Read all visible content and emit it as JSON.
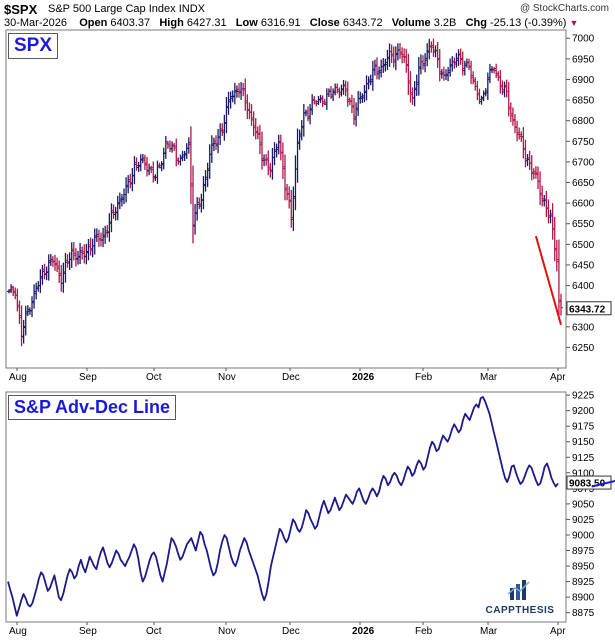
{
  "header": {
    "symbol": "$SPX",
    "name": "S&P 500 Large Cap Index",
    "exchange": "INDX",
    "copyright": "@ StockCharts.com",
    "date": "30-Mar-2026",
    "open_label": "Open",
    "open": "6403.37",
    "high_label": "High",
    "high": "6427.31",
    "low_label": "Low",
    "low": "6316.91",
    "close_label": "Close",
    "close": "6343.72",
    "volume_label": "Volume",
    "volume": "3.2B",
    "chg_label": "Chg",
    "chg": "-25.13 (-0.39%)"
  },
  "logo": {
    "text": "CAPPTHESIS"
  },
  "colors": {
    "up": "#1a1a6b",
    "down": "#b0184a",
    "adline": "#1a1a8c",
    "trend_red": "#e01010",
    "trend_blue": "#1a1adb",
    "label": "#1a1adb"
  },
  "chart_data": [
    {
      "type": "ohlc",
      "panel_label": "SPX",
      "ylim": [
        6200,
        7020
      ],
      "yticks": [
        "7000",
        "6950",
        "6900",
        "6850",
        "6800",
        "6750",
        "6700",
        "6650",
        "6600",
        "6550",
        "6500",
        "6450",
        "6400",
        "6350",
        "6300",
        "6250"
      ],
      "last_value": "6343.72",
      "xticks": [
        {
          "label": "Aug",
          "bold": false
        },
        {
          "label": "Sep",
          "bold": false
        },
        {
          "label": "Oct",
          "bold": false
        },
        {
          "label": "Nov",
          "bold": false
        },
        {
          "label": "Dec",
          "bold": false
        },
        {
          "label": "2026",
          "bold": true
        },
        {
          "label": "Feb",
          "bold": false
        },
        {
          "label": "Mar",
          "bold": false
        },
        {
          "label": "Apr",
          "bold": false
        }
      ],
      "anchors": [
        [
          0,
          6380
        ],
        [
          3,
          6390
        ],
        [
          6,
          6280
        ],
        [
          9,
          6340
        ],
        [
          13,
          6390
        ],
        [
          17,
          6440
        ],
        [
          21,
          6460
        ],
        [
          25,
          6420
        ],
        [
          30,
          6480
        ],
        [
          35,
          6470
        ],
        [
          40,
          6505
        ],
        [
          45,
          6520
        ],
        [
          48,
          6550
        ],
        [
          52,
          6600
        ],
        [
          56,
          6630
        ],
        [
          60,
          6690
        ],
        [
          65,
          6700
        ],
        [
          70,
          6660
        ],
        [
          75,
          6740
        ],
        [
          79,
          6730
        ],
        [
          82,
          6700
        ],
        [
          86,
          6740
        ],
        [
          88,
          6560
        ],
        [
          92,
          6610
        ],
        [
          96,
          6720
        ],
        [
          100,
          6760
        ],
        [
          103,
          6800
        ],
        [
          106,
          6860
        ],
        [
          110,
          6880
        ],
        [
          113,
          6850
        ],
        [
          117,
          6790
        ],
        [
          121,
          6720
        ],
        [
          125,
          6680
        ],
        [
          129,
          6760
        ],
        [
          132,
          6640
        ],
        [
          135,
          6570
        ],
        [
          138,
          6740
        ],
        [
          141,
          6810
        ],
        [
          145,
          6840
        ],
        [
          149,
          6850
        ],
        [
          153,
          6860
        ],
        [
          157,
          6880
        ],
        [
          161,
          6870
        ],
        [
          165,
          6820
        ],
        [
          168,
          6850
        ],
        [
          172,
          6900
        ],
        [
          175,
          6920
        ],
        [
          178,
          6930
        ],
        [
          181,
          6950
        ],
        [
          184,
          6960
        ],
        [
          187,
          6970
        ],
        [
          190,
          6930
        ],
        [
          193,
          6850
        ],
        [
          196,
          6920
        ],
        [
          199,
          6960
        ],
        [
          202,
          6980
        ],
        [
          205,
          6950
        ],
        [
          208,
          6900
        ],
        [
          211,
          6930
        ],
        [
          214,
          6960
        ],
        [
          217,
          6930
        ],
        [
          220,
          6940
        ],
        [
          223,
          6870
        ],
        [
          226,
          6850
        ],
        [
          229,
          6900
        ],
        [
          232,
          6930
        ],
        [
          235,
          6890
        ],
        [
          238,
          6860
        ],
        [
          241,
          6800
        ],
        [
          244,
          6760
        ],
        [
          247,
          6720
        ],
        [
          250,
          6680
        ],
        [
          253,
          6650
        ],
        [
          256,
          6600
        ],
        [
          259,
          6560
        ],
        [
          262,
          6470
        ],
        [
          263,
          6360
        ],
        [
          264,
          6340
        ]
      ],
      "trendline": [
        [
          252,
          6520
        ],
        [
          264,
          6305
        ]
      ]
    },
    {
      "type": "line",
      "panel_label": "S&P Adv-Dec Line",
      "ylim": [
        8860,
        9230
      ],
      "yticks": [
        "9225",
        "9200",
        "9175",
        "9150",
        "9125",
        "9100",
        "9075",
        "9050",
        "9025",
        "9000",
        "8975",
        "8950",
        "8925",
        "8900",
        "8875"
      ],
      "last_value": "9083.50",
      "xticks": [
        {
          "label": "Aug",
          "bold": false
        },
        {
          "label": "Sep",
          "bold": false
        },
        {
          "label": "Oct",
          "bold": false
        },
        {
          "label": "Nov",
          "bold": false
        },
        {
          "label": "Dec",
          "bold": false
        },
        {
          "label": "2026",
          "bold": true
        },
        {
          "label": "Feb",
          "bold": false
        },
        {
          "label": "Mar",
          "bold": false
        },
        {
          "label": "Apr",
          "bold": false
        }
      ],
      "values": [
        8925,
        8912,
        8900,
        8885,
        8870,
        8882,
        8895,
        8905,
        8898,
        8888,
        8885,
        8890,
        8902,
        8915,
        8930,
        8940,
        8935,
        8922,
        8910,
        8915,
        8925,
        8935,
        8918,
        8900,
        8895,
        8905,
        8920,
        8935,
        8945,
        8940,
        8930,
        8935,
        8950,
        8960,
        8948,
        8940,
        8952,
        8965,
        8958,
        8950,
        8945,
        8960,
        8972,
        8980,
        8968,
        8955,
        8948,
        8955,
        8965,
        8975,
        8970,
        8960,
        8955,
        8950,
        8958,
        8965,
        8975,
        8985,
        8978,
        8962,
        8940,
        8925,
        8932,
        8945,
        8958,
        8968,
        8972,
        8965,
        8950,
        8935,
        8925,
        8940,
        8955,
        8975,
        8995,
        8990,
        8982,
        8970,
        8960,
        8965,
        8975,
        8985,
        8990,
        8995,
        8985,
        8975,
        8990,
        9005,
        9000,
        8985,
        8975,
        8960,
        8945,
        8935,
        8940,
        8955,
        8975,
        8990,
        9000,
        8995,
        8980,
        8965,
        8955,
        8950,
        8960,
        8975,
        8985,
        8995,
        8988,
        8975,
        8965,
        8955,
        8945,
        8935,
        8920,
        8905,
        8895,
        8905,
        8925,
        8950,
        8965,
        8980,
        8995,
        9010,
        9005,
        8995,
        8988,
        8995,
        9010,
        9025,
        9020,
        9010,
        9005,
        9012,
        9025,
        9040,
        9035,
        9025,
        9018,
        9010,
        9015,
        9030,
        9045,
        9055,
        9045,
        9035,
        9040,
        9050,
        9060,
        9050,
        9040,
        9045,
        9055,
        9065,
        9060,
        9055,
        9050,
        9058,
        9070,
        9075,
        9065,
        9055,
        9050,
        9058,
        9068,
        9075,
        9070,
        9062,
        9070,
        9085,
        9095,
        9090,
        9080,
        9085,
        9095,
        9100,
        9095,
        9085,
        9080,
        9088,
        9100,
        9110,
        9105,
        9095,
        9100,
        9112,
        9120,
        9115,
        9105,
        9110,
        9125,
        9140,
        9150,
        9145,
        9135,
        9138,
        9150,
        9160,
        9155,
        9150,
        9158,
        9170,
        9178,
        9172,
        9165,
        9170,
        9185,
        9195,
        9190,
        9185,
        9195,
        9205,
        9210,
        9205,
        9220,
        9222,
        9215,
        9205,
        9195,
        9180,
        9165,
        9150,
        9135,
        9120,
        9105,
        9092,
        9085,
        9095,
        9110,
        9112,
        9100,
        9090,
        9082,
        9086,
        9095,
        9105,
        9112,
        9108,
        9098,
        9088,
        9080,
        9083,
        9095,
        9110,
        9115,
        9105,
        9092,
        9084,
        9078,
        9083
      ],
      "trendline": [
        [
          257,
          9078
        ],
        [
          274,
          9090
        ]
      ]
    }
  ]
}
